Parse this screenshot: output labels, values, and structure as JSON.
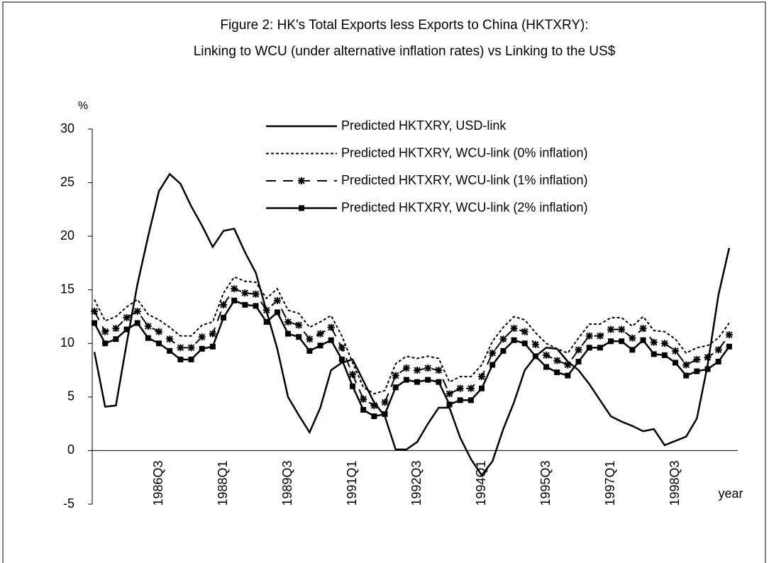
{
  "chart_data": {
    "type": "line",
    "title": "Figure 2: HK's Total Exports less Exports to China (HKTXRY):",
    "subtitle": "Linking to WCU (under alternative inflation rates) vs Linking to the US$",
    "y_label": "%",
    "x_label": "year",
    "categories": [
      null,
      null,
      null,
      null,
      null,
      null,
      "1986Q3",
      null,
      null,
      null,
      null,
      null,
      "1988Q1",
      null,
      null,
      null,
      null,
      null,
      "1989Q3",
      null,
      null,
      null,
      null,
      null,
      "1991Q1",
      null,
      null,
      null,
      null,
      null,
      "1992Q3",
      null,
      null,
      null,
      null,
      null,
      "1994Q1",
      null,
      null,
      null,
      null,
      null,
      "1995Q3",
      null,
      null,
      null,
      null,
      null,
      "1997Q1",
      null,
      null,
      null,
      null,
      null,
      "1998Q3",
      null,
      null,
      null,
      null,
      null
    ],
    "ylim": [
      -5,
      30
    ],
    "yticks": [
      -5,
      0,
      5,
      10,
      15,
      20,
      25,
      30
    ],
    "series": [
      {
        "name": "Predicted HKTXRY, USD-link",
        "color": "#000000",
        "style": "solid",
        "marker": "none",
        "values": [
          9.2,
          4.1,
          4.2,
          10,
          15.5,
          20,
          24.2,
          25.8,
          24.9,
          22.8,
          21,
          19,
          20.5,
          20.7,
          18.5,
          16.6,
          13,
          9.5,
          5,
          3.3,
          1.7,
          4,
          7.5,
          8.2,
          8.5,
          6.5,
          4.5,
          3.2,
          0.1,
          0.1,
          0.8,
          2.5,
          4,
          4,
          1.2,
          -0.8,
          -2.3,
          -1,
          2,
          4.5,
          7.5,
          8.8,
          9.6,
          9.5,
          8.3,
          7.5,
          6.2,
          4.7,
          3.2,
          2.7,
          2.3,
          1.8,
          2,
          0.5,
          0.9,
          1.3,
          3,
          8,
          14.5,
          18.9
        ]
      },
      {
        "name": "Predicted HKTXRY, WCU-link (0% inflation)",
        "color": "#000000",
        "style": "dotted",
        "marker": "none",
        "values": [
          14.1,
          12.1,
          12.5,
          13.4,
          14.1,
          12.7,
          12.2,
          11.5,
          10.7,
          10.7,
          11.7,
          12.0,
          14.7,
          16.2,
          15.8,
          15.7,
          14.2,
          15.1,
          13.1,
          12.8,
          11.5,
          12.0,
          12.6,
          10.7,
          8.2,
          5.9,
          5.3,
          5.6,
          8.1,
          8.8,
          8.6,
          8.8,
          8.6,
          6.4,
          6.9,
          6.9,
          8.0,
          10.2,
          11.5,
          12.5,
          12.2,
          11.0,
          10.0,
          9.5,
          9.1,
          10.5,
          11.8,
          11.8,
          12.4,
          12.4,
          11.6,
          12.5,
          11.2,
          11.1,
          10.4,
          9.1,
          9.6,
          9.8,
          10.5,
          11.9
        ]
      },
      {
        "name": "Predicted HKTXRY, WCU-link (1% inflation)",
        "color": "#000000",
        "style": "dashed",
        "marker": "star",
        "values": [
          13.0,
          11.1,
          11.4,
          12.4,
          13.0,
          11.6,
          11.1,
          10.4,
          9.6,
          9.6,
          10.6,
          10.9,
          13.6,
          15.1,
          14.7,
          14.6,
          13.1,
          14.0,
          12.0,
          11.7,
          10.4,
          10.9,
          11.5,
          9.6,
          7.1,
          4.8,
          4.2,
          4.5,
          7.0,
          7.7,
          7.5,
          7.7,
          7.5,
          5.3,
          5.8,
          5.8,
          6.9,
          9.1,
          10.4,
          11.4,
          11.1,
          9.9,
          8.9,
          8.4,
          8.0,
          9.4,
          10.7,
          10.7,
          11.3,
          11.3,
          10.5,
          11.4,
          10.1,
          10.0,
          9.3,
          8.0,
          8.5,
          8.7,
          9.4,
          10.8
        ]
      },
      {
        "name": "Predicted HKTXRY, WCU-link (2% inflation)",
        "color": "#000000",
        "style": "solid",
        "marker": "square",
        "values": [
          11.9,
          10.0,
          10.4,
          11.3,
          11.9,
          10.5,
          10.0,
          9.3,
          8.5,
          8.5,
          9.5,
          9.7,
          12.4,
          14.0,
          13.6,
          13.5,
          12.0,
          12.9,
          10.9,
          10.6,
          9.3,
          9.8,
          10.3,
          8.5,
          6.0,
          3.8,
          3.2,
          3.4,
          5.9,
          6.6,
          6.4,
          6.6,
          6.4,
          4.3,
          4.7,
          4.7,
          5.8,
          8.0,
          9.3,
          10.3,
          10.0,
          8.8,
          7.8,
          7.3,
          7.0,
          8.3,
          9.6,
          9.6,
          10.2,
          10.2,
          9.4,
          10.3,
          9.0,
          8.9,
          8.2,
          7.0,
          7.4,
          7.6,
          8.3,
          9.7
        ]
      }
    ]
  }
}
